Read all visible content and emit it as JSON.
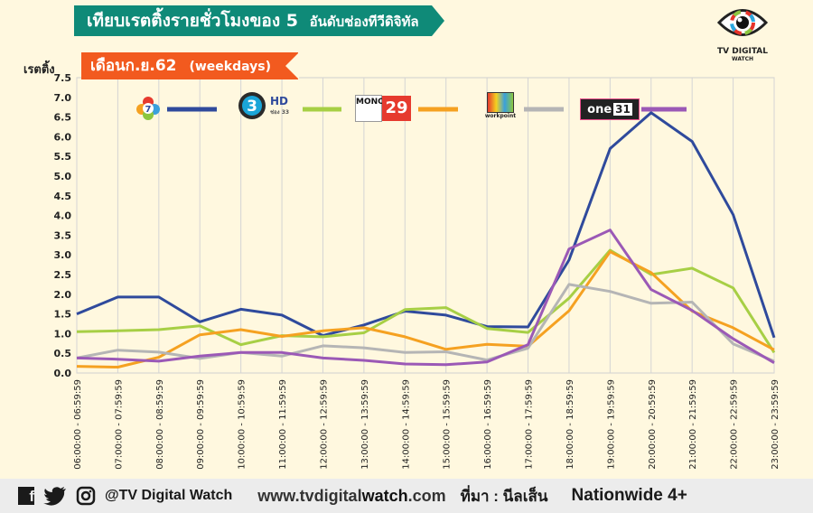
{
  "header": {
    "title": "เทียบเรตติ้งรายชั่วโมงของ",
    "title_number": "5",
    "title_suffix": "อันดับช่องทีวีดิจิทัล",
    "month": "เดือนก.ย.62",
    "period": "(weekdays)",
    "y_unit": "เรตติ้ง"
  },
  "brand": {
    "line1": "TV DIGITAL",
    "line2": "WATCH"
  },
  "legend_logos": {
    "ch7": "7",
    "ch3": "3",
    "ch3_hd": "HD",
    "ch3_sub": "ช่อง 33",
    "mono_letters": "MONO",
    "mono_num": "29",
    "workpoint": "workpoint",
    "one": "one",
    "one_num": "31"
  },
  "footer": {
    "handle": "@TV Digital Watch",
    "web_prefix": "www.tvdigital",
    "web_bold": "watch",
    "web_suffix": ".com",
    "source": "ที่มา : นีลเส็น",
    "audience": "Nationwide 4+"
  },
  "chart_data": {
    "type": "line",
    "ylim": [
      0,
      7.5
    ],
    "yticks": [
      "0.0",
      "0.5",
      "1.0",
      "1.5",
      "2.0",
      "2.5",
      "3.0",
      "3.5",
      "4.0",
      "4.5",
      "5.0",
      "5.5",
      "6.0",
      "6.5",
      "7.0",
      "7.5"
    ],
    "categories": [
      "06:00:00 - 06:59:59",
      "07:00:00 - 07:59:59",
      "08:00:00 - 08:59:59",
      "09:00:00 - 09:59:59",
      "10:00:00 - 10:59:59",
      "11:00:00 - 11:59:59",
      "12:00:00 - 12:59:59",
      "13:00:00 - 13:59:59",
      "14:00:00 - 14:59:59",
      "15:00:00 - 15:59:59",
      "16:00:00 - 16:59:59",
      "17:00:00 - 17:59:59",
      "18:00:00 - 18:59:59",
      "19:00:00 - 19:59:59",
      "20:00:00 - 20:59:59",
      "21:00:00 - 21:59:59",
      "22:00:00 - 22:59:59",
      "23:00:00 - 23:59:59"
    ],
    "series": [
      {
        "color": "#2f4a9c",
        "values": [
          1.5,
          1.93,
          1.93,
          1.3,
          1.62,
          1.47,
          0.95,
          1.22,
          1.57,
          1.47,
          1.18,
          1.17,
          2.87,
          5.7,
          6.61,
          5.88,
          4.02,
          0.9
        ]
      },
      {
        "color": "#a7cf45",
        "values": [
          1.05,
          1.07,
          1.1,
          1.2,
          0.72,
          0.95,
          0.92,
          1.02,
          1.61,
          1.66,
          1.13,
          1.03,
          1.9,
          3.12,
          2.5,
          2.66,
          2.16,
          0.52
        ]
      },
      {
        "color": "#f5a121",
        "values": [
          0.17,
          0.15,
          0.4,
          0.97,
          1.1,
          0.93,
          1.07,
          1.15,
          0.92,
          0.6,
          0.73,
          0.68,
          1.58,
          3.08,
          2.55,
          1.57,
          1.15,
          0.59
        ]
      },
      {
        "color": "#b5b5b5",
        "values": [
          0.38,
          0.58,
          0.53,
          0.37,
          0.52,
          0.43,
          0.69,
          0.64,
          0.52,
          0.54,
          0.33,
          0.63,
          2.25,
          2.07,
          1.77,
          1.8,
          0.74,
          0.3
        ]
      },
      {
        "color": "#9b59b6",
        "values": [
          0.38,
          0.35,
          0.3,
          0.43,
          0.52,
          0.52,
          0.38,
          0.32,
          0.23,
          0.21,
          0.28,
          0.72,
          3.15,
          3.63,
          2.12,
          1.59,
          0.87,
          0.26
        ]
      }
    ]
  }
}
